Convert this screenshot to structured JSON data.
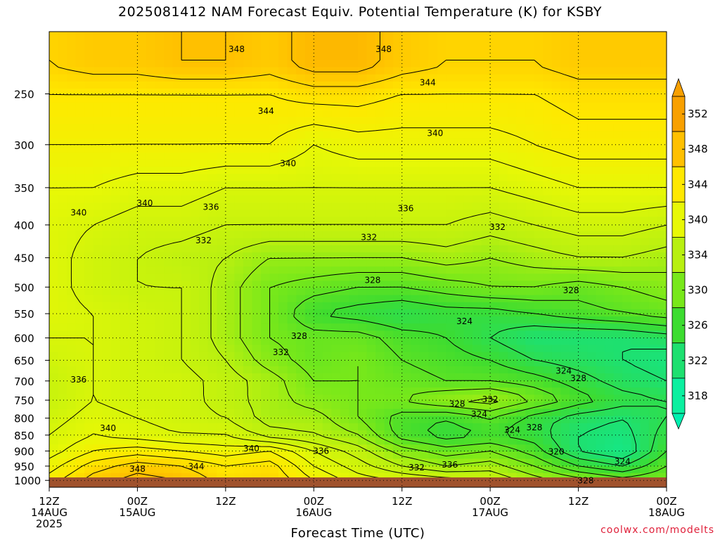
{
  "chart_data": {
    "type": "heatmap",
    "title": "2025081412 NAM Forecast Equiv. Potential Temperature (K) for KSBY",
    "xlabel": "Forecast Time (UTC)",
    "ylabel": "",
    "credit": "coolwx.com/modelts",
    "x_ticks": [
      {
        "hours": 0,
        "lines": [
          "12Z",
          "14AUG",
          "2025"
        ]
      },
      {
        "hours": 12,
        "lines": [
          "00Z",
          "15AUG"
        ]
      },
      {
        "hours": 24,
        "lines": [
          "12Z"
        ]
      },
      {
        "hours": 36,
        "lines": [
          "00Z",
          "16AUG"
        ]
      },
      {
        "hours": 48,
        "lines": [
          "12Z"
        ]
      },
      {
        "hours": 60,
        "lines": [
          "00Z",
          "17AUG"
        ]
      },
      {
        "hours": 72,
        "lines": [
          "12Z"
        ]
      },
      {
        "hours": 84,
        "lines": [
          "00Z",
          "18AUG"
        ]
      }
    ],
    "xlim_hours": [
      0,
      84
    ],
    "y_ticks": [
      250,
      300,
      350,
      400,
      450,
      500,
      550,
      600,
      650,
      700,
      750,
      800,
      850,
      900,
      950,
      1000
    ],
    "y_axis_log_pressure": true,
    "ylim_hPa": [
      1025,
      200
    ],
    "grid": true,
    "colorbar": {
      "levels": [
        318,
        322,
        326,
        330,
        334,
        340,
        344,
        348,
        352
      ],
      "labels": [
        "318",
        "322",
        "326",
        "330",
        "334",
        "340",
        "344",
        "348",
        "352"
      ],
      "colors": [
        "#0cf0a0",
        "#1ee070",
        "#3ddc30",
        "#78e81a",
        "#b8f010",
        "#e8f806",
        "#ffe800",
        "#ffc000",
        "#f8a000"
      ],
      "arrow_top_color": "#f8a000",
      "arrow_bottom_color": "#00f0b0"
    },
    "ground_color": "#a0522d",
    "pressure_levels": [
      1000,
      950,
      900,
      850,
      800,
      750,
      700,
      650,
      600,
      550,
      500,
      450,
      400,
      350,
      300,
      250,
      225
    ],
    "forecast_hours": [
      0,
      6,
      12,
      18,
      24,
      30,
      36,
      42,
      48,
      54,
      60,
      66,
      72,
      78,
      84
    ],
    "theta_e": [
      [
        343,
        347,
        349,
        348,
        345,
        346,
        342,
        339,
        338,
        337,
        336,
        333,
        331,
        329,
        330
      ],
      [
        341,
        345,
        347,
        346,
        344,
        345,
        340,
        337,
        334,
        332,
        333,
        330,
        326,
        324,
        328
      ],
      [
        339,
        342,
        343,
        342,
        341,
        342,
        338,
        335,
        331,
        329,
        330,
        327,
        322,
        320,
        326
      ],
      [
        338,
        340,
        339,
        338,
        338,
        335,
        334,
        332,
        327,
        325,
        326,
        325,
        322,
        321,
        325
      ],
      [
        337,
        339,
        338,
        337,
        336,
        333,
        333,
        330,
        327,
        326,
        328,
        325,
        323,
        322,
        324
      ],
      [
        336,
        338,
        337,
        337,
        335,
        333,
        331,
        330,
        330,
        332,
        333,
        330,
        327,
        325,
        324
      ],
      [
        336,
        338,
        337,
        337,
        335,
        333,
        330,
        330,
        329,
        328,
        328,
        327,
        325,
        323,
        322
      ],
      [
        337,
        338,
        337,
        336,
        334,
        331,
        329,
        330,
        328,
        327,
        326,
        324,
        323,
        322,
        321
      ],
      [
        338,
        338,
        337,
        336,
        333,
        330,
        329,
        329,
        327,
        326,
        324,
        322,
        322,
        322,
        323
      ],
      [
        339,
        338,
        337,
        336,
        333,
        330,
        326,
        325,
        324,
        325,
        325,
        326,
        327,
        328,
        329
      ],
      [
        339,
        337,
        336,
        336,
        333,
        330,
        329,
        328,
        328,
        329,
        330,
        330,
        329,
        330,
        331
      ],
      [
        339,
        337,
        336,
        335,
        334,
        332,
        332,
        332,
        332,
        333,
        332,
        333,
        334,
        334,
        333
      ],
      [
        339,
        338,
        337,
        337,
        336,
        336,
        336,
        336,
        336,
        336,
        335,
        336,
        337,
        337,
        336
      ],
      [
        340,
        340,
        339,
        339,
        338,
        338,
        338,
        338,
        338,
        338,
        338,
        339,
        340,
        340,
        340
      ],
      [
        342,
        342,
        342,
        342,
        342,
        342,
        340,
        341,
        341,
        341,
        341,
        342,
        343,
        343,
        343
      ],
      [
        344,
        344,
        344,
        344,
        344,
        344,
        345,
        345,
        344,
        344,
        344,
        344,
        345,
        345,
        345
      ],
      [
        346,
        347,
        347,
        348,
        348,
        347,
        349,
        349,
        347,
        346,
        346,
        346,
        347,
        347,
        347
      ]
    ],
    "contour_labels": [
      {
        "text": "348",
        "hours": 25.5,
        "hPa": 213
      },
      {
        "text": "348",
        "hours": 45.5,
        "hPa": 213
      },
      {
        "text": "344",
        "hours": 51.5,
        "hPa": 240
      },
      {
        "text": "344",
        "hours": 29.5,
        "hPa": 266
      },
      {
        "text": "340",
        "hours": 52.5,
        "hPa": 288
      },
      {
        "text": "340",
        "hours": 32.5,
        "hPa": 321
      },
      {
        "text": "340",
        "hours": 4,
        "hPa": 383
      },
      {
        "text": "340",
        "hours": 13,
        "hPa": 370
      },
      {
        "text": "336",
        "hours": 22,
        "hPa": 375
      },
      {
        "text": "336",
        "hours": 48.5,
        "hPa": 377
      },
      {
        "text": "332",
        "hours": 21,
        "hPa": 423
      },
      {
        "text": "332",
        "hours": 43.5,
        "hPa": 418
      },
      {
        "text": "332",
        "hours": 61,
        "hPa": 403
      },
      {
        "text": "328",
        "hours": 44,
        "hPa": 488
      },
      {
        "text": "328",
        "hours": 71,
        "hPa": 506
      },
      {
        "text": "328",
        "hours": 34,
        "hPa": 596
      },
      {
        "text": "332",
        "hours": 31.5,
        "hPa": 632
      },
      {
        "text": "324",
        "hours": 56.5,
        "hPa": 565
      },
      {
        "text": "324",
        "hours": 70,
        "hPa": 675
      },
      {
        "text": "328",
        "hours": 72,
        "hPa": 693
      },
      {
        "text": "336",
        "hours": 4,
        "hPa": 697
      },
      {
        "text": "328",
        "hours": 55.5,
        "hPa": 760
      },
      {
        "text": "332",
        "hours": 60,
        "hPa": 748
      },
      {
        "text": "324",
        "hours": 58.5,
        "hPa": 789
      },
      {
        "text": "324",
        "hours": 63,
        "hPa": 835
      },
      {
        "text": "328",
        "hours": 66,
        "hPa": 827
      },
      {
        "text": "340",
        "hours": 8,
        "hPa": 829
      },
      {
        "text": "340",
        "hours": 27.5,
        "hPa": 892
      },
      {
        "text": "336",
        "hours": 37,
        "hPa": 900
      },
      {
        "text": "320",
        "hours": 69,
        "hPa": 902
      },
      {
        "text": "324",
        "hours": 78,
        "hPa": 935
      },
      {
        "text": "344",
        "hours": 20,
        "hPa": 952
      },
      {
        "text": "348",
        "hours": 12,
        "hPa": 960
      },
      {
        "text": "332",
        "hours": 50,
        "hPa": 955
      },
      {
        "text": "336",
        "hours": 54.5,
        "hPa": 945
      },
      {
        "text": "328",
        "hours": 73,
        "hPa": 1001
      }
    ]
  }
}
